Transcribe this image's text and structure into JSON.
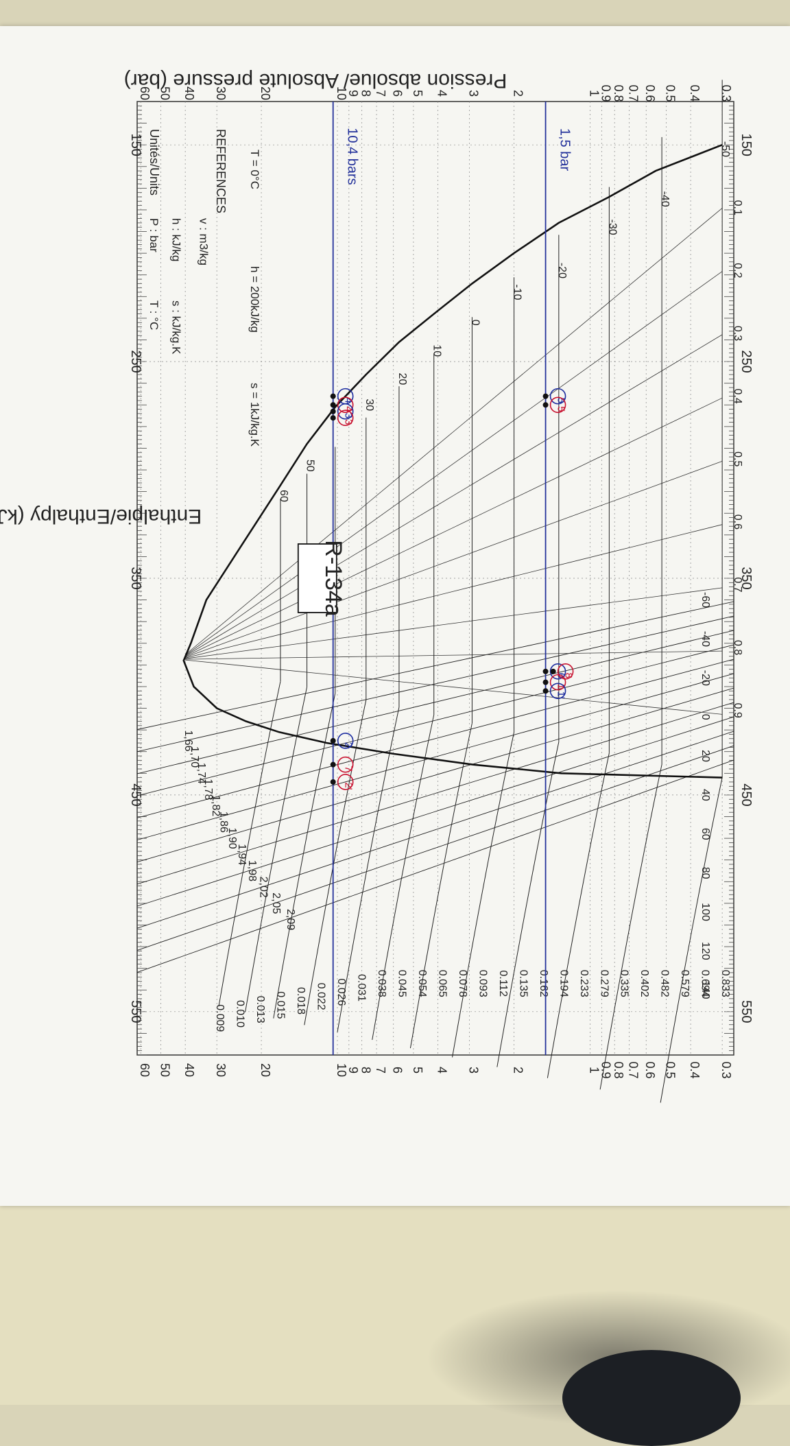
{
  "chart_data": {
    "type": "line",
    "title": "R-134a",
    "x_axis_label": "Enthalpie/Enthalpy (kJ/kg)",
    "y_axis_label": "Pression absolue/ Absolute pressure (bar)",
    "x_ticks": [
      "150",
      "250",
      "350",
      "450",
      "550"
    ],
    "xlim": [
      130,
      570
    ],
    "y_scale": "log",
    "ylim": [
      0.27,
      62
    ],
    "y_ticks": [
      "60",
      "50",
      "40",
      "30",
      "20",
      "10",
      "9",
      "8",
      "7",
      "6",
      "5",
      "4",
      "3",
      "2",
      "1",
      "0.9",
      "0.8",
      "0.7",
      "0.6",
      "0.5",
      "0.4",
      "0.3"
    ],
    "y_tick_values": [
      60,
      50,
      40,
      30,
      20,
      10,
      9,
      8,
      7,
      6,
      5,
      4,
      3,
      2,
      1,
      0.9,
      0.8,
      0.7,
      0.6,
      0.5,
      0.4,
      0.3
    ],
    "units_header": "Unités/Units",
    "units": [
      "P : bar",
      "T : °C",
      "h : kJ/kg",
      "s : kJ/kg.K",
      "v : m3/kg"
    ],
    "references_header": "REFERENCES",
    "references": [
      "T = 0°C",
      "h = 200kJ/kg",
      "s = 1kJ/kg.K"
    ],
    "saturation_liquid": {
      "h": [
        150,
        162,
        174,
        186,
        200,
        214,
        228,
        241,
        256,
        271,
        288,
        308,
        335,
        360,
        380,
        388
      ],
      "p": [
        0.3,
        0.55,
        0.84,
        1.33,
        2.0,
        2.93,
        4.15,
        5.7,
        7.7,
        10.2,
        13.2,
        17.0,
        24.0,
        33.0,
        38.0,
        40.6
      ]
    },
    "saturation_vapor": {
      "h": [
        388,
        400,
        410,
        416,
        421,
        426,
        431,
        436,
        440,
        442
      ],
      "p": [
        40.6,
        37.0,
        30.0,
        23.0,
        17.0,
        11.0,
        6.0,
        2.9,
        1.3,
        0.3
      ]
    },
    "liquid_temperature_labels": [
      {
        "text": "-50",
        "h": 152,
        "p": 0.3
      },
      {
        "text": "-40",
        "h": 175,
        "p": 0.52
      },
      {
        "text": "-30",
        "h": 188,
        "p": 0.84
      },
      {
        "text": "-20",
        "h": 208,
        "p": 1.33
      },
      {
        "text": "-10",
        "h": 218,
        "p": 2.0
      },
      {
        "text": "0",
        "h": 232,
        "p": 2.93
      },
      {
        "text": "10",
        "h": 245,
        "p": 4.15
      },
      {
        "text": "20",
        "h": 258,
        "p": 5.7
      },
      {
        "text": "30",
        "h": 270,
        "p": 7.7
      },
      {
        "text": "50",
        "h": 298,
        "p": 13.2
      },
      {
        "text": "60",
        "h": 312,
        "p": 16.8
      }
    ],
    "entropy_labels": [
      "1,66",
      "1,70",
      "1,74",
      "1,78",
      "1,82",
      "1,86",
      "1,90",
      "1,94",
      "1,98",
      "2,02",
      "2,05",
      "2,09"
    ],
    "volume_labels": [
      "0.009",
      "0.010",
      "0.013",
      "0.015",
      "0.018",
      "0.022",
      "0.026",
      "0.031",
      "0.038",
      "0.045",
      "0.054",
      "0.065",
      "0.078",
      "0.093",
      "0.112",
      "0.135",
      "0.162",
      "0.194",
      "0.233",
      "0.279",
      "0.335",
      "0.402",
      "0.482",
      "0.579",
      "0.694",
      "0.833"
    ],
    "quality_labels": [
      "0.1",
      "0.2",
      "0.3",
      "0.4",
      "0.5",
      "0.6",
      "0.7",
      "0.8",
      "0.9"
    ],
    "vapor_temperature_labels": [
      "-60",
      "-40",
      "-20",
      "0",
      "20",
      "40",
      "60",
      "80",
      "100",
      "120",
      "140"
    ],
    "annotations": {
      "high_pressure": {
        "text": "10,4 bars",
        "p": 10.4
      },
      "low_pressure": {
        "text": "1,5 bar",
        "p": 1.5
      },
      "points": [
        {
          "label": "4",
          "h": 266,
          "p": 10.4,
          "color": "#1a2a9e"
        },
        {
          "label": "4",
          "h": 270,
          "p": 10.4,
          "color": "#c8102e"
        },
        {
          "label": "3",
          "h": 273,
          "p": 10.4,
          "color": "#1a2a9e"
        },
        {
          "label": "3",
          "h": 276,
          "p": 10.4,
          "color": "#c8102e"
        },
        {
          "label": "5",
          "h": 266,
          "p": 1.5,
          "color": "#1a2a9e"
        },
        {
          "label": "5",
          "h": 270,
          "p": 1.5,
          "color": "#c8102e"
        },
        {
          "label": "6",
          "h": 393,
          "p": 1.5,
          "color": "#1a2a9e"
        },
        {
          "label": "8",
          "h": 393,
          "p": 1.4,
          "color": "#c8102e"
        },
        {
          "label": "1",
          "h": 398,
          "p": 1.5,
          "color": "#c8102e"
        },
        {
          "label": "2",
          "h": 425,
          "p": 10.4,
          "color": "#1a2a9e"
        },
        {
          "label": "2'",
          "h": 444,
          "p": 10.4,
          "color": "#c8102e"
        },
        {
          "label": "7",
          "h": 436,
          "p": 10.4,
          "color": "#c8102e"
        },
        {
          "label": "1'",
          "h": 402,
          "p": 1.5,
          "color": "#1a2a9e"
        }
      ]
    }
  }
}
